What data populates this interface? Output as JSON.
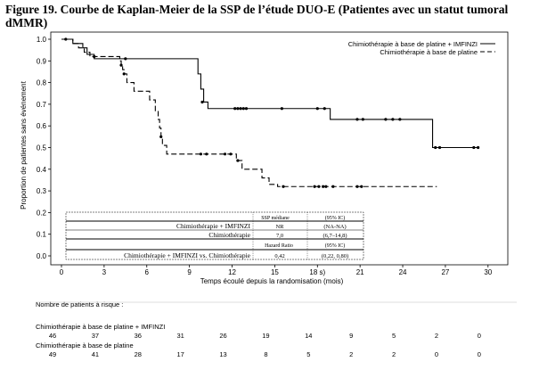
{
  "figure_title": "Figure 19. Courbe de Kaplan-Meier de la SSP de l’étude DUO-E (Patientes avec un statut tumoral dMMR)",
  "chart_data": {
    "type": "line",
    "title": "",
    "xlabel": "Temps écoulé depuis la randomisation (mois)",
    "ylabel": "Proportion de patientes sans événement",
    "xlim": [
      -1,
      31
    ],
    "ylim": [
      0,
      1.05
    ],
    "xticks": [
      "0",
      "3",
      "6",
      "9",
      "12",
      "15",
      "18 s)",
      "21",
      "24",
      "27",
      "30"
    ],
    "xtick_values": [
      0,
      3,
      6,
      9,
      12,
      15,
      18,
      21,
      24,
      27,
      30
    ],
    "yticks": [
      "0.0",
      "0.1",
      "0.2",
      "0.3",
      "0.4",
      "0.5",
      "0.6",
      "0.7",
      "0.8",
      "0.9",
      "1.0"
    ],
    "ytick_values": [
      0,
      0.1,
      0.2,
      0.3,
      0.4,
      0.5,
      0.6,
      0.7,
      0.8,
      0.9,
      1.0
    ],
    "grid": false,
    "legend_position": "top-right",
    "series": [
      {
        "name": "Chimiothérapie à base de platine + IMFINZI",
        "style": "solid",
        "color": "#000000",
        "steps": [
          [
            0,
            1.0
          ],
          [
            0.8,
            0.98
          ],
          [
            1.5,
            0.96
          ],
          [
            1.8,
            0.93
          ],
          [
            2.3,
            0.91
          ],
          [
            5.6,
            0.91
          ],
          [
            9.6,
            0.84
          ],
          [
            9.8,
            0.77
          ],
          [
            10.0,
            0.71
          ],
          [
            10.3,
            0.68
          ],
          [
            18.6,
            0.68
          ],
          [
            18.9,
            0.63
          ],
          [
            26.0,
            0.63
          ],
          [
            26.1,
            0.5
          ],
          [
            29.3,
            0.5
          ]
        ],
        "censored": [
          [
            0.3,
            1.0
          ],
          [
            2.3,
            0.92
          ],
          [
            4.5,
            0.91
          ],
          [
            9.9,
            0.71
          ],
          [
            12.2,
            0.68
          ],
          [
            12.4,
            0.68
          ],
          [
            12.6,
            0.68
          ],
          [
            12.8,
            0.68
          ],
          [
            13.0,
            0.68
          ],
          [
            15.5,
            0.68
          ],
          [
            18.0,
            0.68
          ],
          [
            18.5,
            0.68
          ],
          [
            20.8,
            0.63
          ],
          [
            21.2,
            0.63
          ],
          [
            22.8,
            0.63
          ],
          [
            23.3,
            0.63
          ],
          [
            23.8,
            0.63
          ],
          [
            26.3,
            0.5
          ],
          [
            26.6,
            0.5
          ],
          [
            29.0,
            0.5
          ],
          [
            29.3,
            0.5
          ]
        ]
      },
      {
        "name": "Chimiothérapie à base de platine",
        "style": "dashed",
        "color": "#000000",
        "steps": [
          [
            0,
            1.0
          ],
          [
            0.8,
            0.98
          ],
          [
            1.2,
            0.96
          ],
          [
            1.6,
            0.94
          ],
          [
            2.0,
            0.92
          ],
          [
            4.1,
            0.9
          ],
          [
            4.2,
            0.88
          ],
          [
            4.3,
            0.86
          ],
          [
            4.4,
            0.84
          ],
          [
            4.6,
            0.8
          ],
          [
            5.1,
            0.76
          ],
          [
            6.2,
            0.72
          ],
          [
            6.6,
            0.67
          ],
          [
            6.8,
            0.63
          ],
          [
            6.9,
            0.59
          ],
          [
            7.0,
            0.55
          ],
          [
            7.1,
            0.51
          ],
          [
            7.4,
            0.47
          ],
          [
            12.3,
            0.44
          ],
          [
            12.7,
            0.4
          ],
          [
            14.1,
            0.36
          ],
          [
            14.6,
            0.33
          ],
          [
            15.2,
            0.32
          ],
          [
            26.4,
            0.32
          ]
        ],
        "censored": [
          [
            4.2,
            0.88
          ],
          [
            4.4,
            0.84
          ],
          [
            7.0,
            0.55
          ],
          [
            9.8,
            0.47
          ],
          [
            10.2,
            0.47
          ],
          [
            11.5,
            0.47
          ],
          [
            11.9,
            0.47
          ],
          [
            12.4,
            0.44
          ],
          [
            15.6,
            0.32
          ],
          [
            17.8,
            0.32
          ],
          [
            18.1,
            0.32
          ],
          [
            18.4,
            0.32
          ],
          [
            18.6,
            0.32
          ],
          [
            19.1,
            0.32
          ],
          [
            20.8,
            0.32
          ],
          [
            21.1,
            0.32
          ]
        ]
      }
    ]
  },
  "legend": [
    {
      "label": "Chimiothérapie à base de platine + IMFINZI",
      "style": "solid"
    },
    {
      "label": "Chimiothérapie à base de platine",
      "style": "dashed"
    }
  ],
  "stats_table": {
    "header": [
      "",
      "SSP médiane",
      "(95% IC)"
    ],
    "rows": [
      [
        "Chimiothérapie + IMFINZI",
        "NR",
        "(NA-NA)"
      ],
      [
        "Chimiothérapie",
        "7,0",
        "(6,7–14,8)"
      ]
    ],
    "hr_header": [
      "",
      "Hazard Ratio",
      "(95% IC)"
    ],
    "hr_row": [
      "Chimiothérapie + IMFINZI vs. Chimiothérapie",
      "0,42",
      "(0,22, 0,80)"
    ]
  },
  "risk_table": {
    "title": "Nombre de patients à risque :",
    "groups": [
      {
        "label": "Chimiothérapie à base de platine + IMFINZI",
        "values": [
          "46",
          "37",
          "36",
          "31",
          "26",
          "19",
          "14",
          "9",
          "5",
          "2",
          "0"
        ]
      },
      {
        "label": "Chimiothérapie à base de platine",
        "values": [
          "49",
          "41",
          "28",
          "17",
          "13",
          "8",
          "5",
          "2",
          "2",
          "0",
          "0"
        ]
      }
    ]
  }
}
